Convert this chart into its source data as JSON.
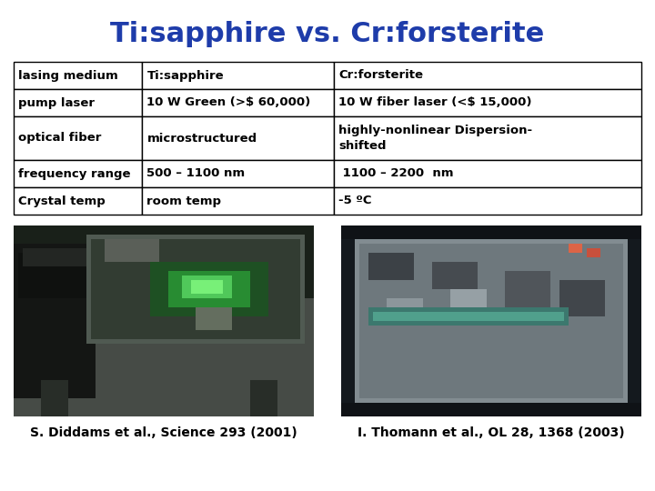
{
  "title": "Ti:sapphire vs. Cr:forsterite",
  "title_color": "#1e3caa",
  "title_fontsize": 22,
  "background_color": "#ffffff",
  "table_data": [
    [
      "lasing medium",
      "Ti:sapphire",
      "Cr:forsterite"
    ],
    [
      "pump laser",
      "10 W Green (>$ 60,000)",
      "10 W fiber laser (<$ 15,000)"
    ],
    [
      "optical fiber",
      "microstructured",
      "highly-nonlinear Dispersion-\nshifted"
    ],
    [
      "frequency range",
      "500 – 1100 nm",
      " 1100 – 2200  nm"
    ],
    [
      "Crystal temp",
      "room temp",
      "-5 ºC"
    ]
  ],
  "caption_left": "S. Diddams et al., Science 293 (2001)",
  "caption_right": "I. Thomann et al., OL 28, 1368 (2003)",
  "caption_fontsize": 10,
  "table_fontsize": 9.5
}
